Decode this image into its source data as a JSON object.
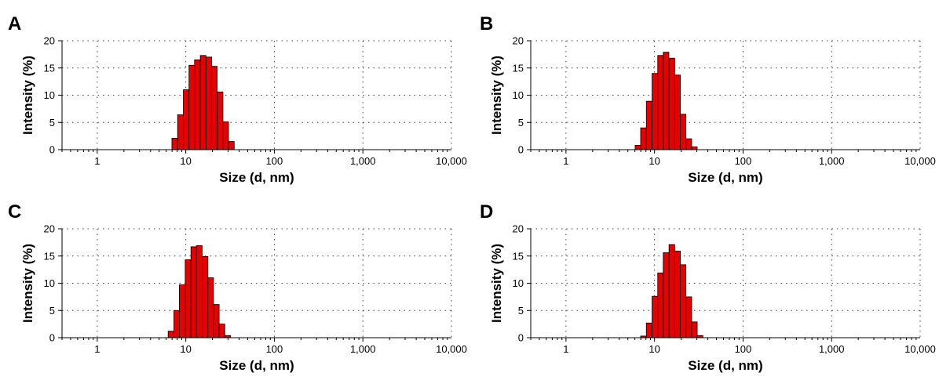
{
  "chart_data": [
    {
      "panel": "A",
      "type": "bar",
      "xlabel": "Size (d, nm)",
      "ylabel": "Intensity (%)",
      "xscale": "log",
      "xlim": [
        0.4,
        10000
      ],
      "ylim": [
        0,
        20
      ],
      "xticks": [
        "1",
        "10",
        "100",
        "1,000",
        "10,000"
      ],
      "yticks": [
        "0",
        "5",
        "10",
        "15",
        "20"
      ],
      "grid": true,
      "bar_color": "#e60000",
      "x": [
        7.5,
        8.7,
        10.1,
        11.7,
        13.5,
        15.7,
        18.2,
        21.0,
        24.4,
        28.2,
        32.7
      ],
      "values": [
        2.1,
        6.4,
        11.0,
        15.5,
        16.5,
        17.3,
        17.0,
        15.3,
        10.6,
        5.1,
        1.5
      ]
    },
    {
      "panel": "B",
      "type": "bar",
      "xlabel": "Size (d, nm)",
      "ylabel": "Intensity (%)",
      "xscale": "log",
      "xlim": [
        0.4,
        10000
      ],
      "ylim": [
        0,
        20
      ],
      "xticks": [
        "1",
        "10",
        "100",
        "1,000",
        "10,000"
      ],
      "yticks": [
        "0",
        "5",
        "10",
        "15",
        "20"
      ],
      "grid": true,
      "bar_color": "#e60000",
      "x": [
        6.5,
        7.5,
        8.7,
        10.1,
        11.7,
        13.5,
        15.7,
        18.2,
        21.0,
        24.4,
        28.2
      ],
      "values": [
        0.8,
        4.0,
        8.9,
        14.0,
        17.3,
        17.9,
        16.8,
        13.7,
        6.5,
        2.0,
        0.5
      ]
    },
    {
      "panel": "C",
      "type": "bar",
      "xlabel": "Size (d, nm)",
      "ylabel": "Intensity (%)",
      "xscale": "log",
      "xlim": [
        0.4,
        10000
      ],
      "ylim": [
        0,
        20
      ],
      "xticks": [
        "1",
        "10",
        "100",
        "1,000",
        "10,000"
      ],
      "yticks": [
        "0",
        "5",
        "10",
        "15",
        "20"
      ],
      "grid": true,
      "bar_color": "#e60000",
      "x": [
        6.8,
        7.9,
        9.1,
        10.6,
        12.3,
        14.2,
        16.5,
        19.1,
        22.1,
        25.6,
        29.7
      ],
      "values": [
        1.2,
        5.0,
        9.7,
        14.3,
        16.7,
        16.9,
        14.9,
        11.0,
        6.1,
        2.5,
        0.4
      ]
    },
    {
      "panel": "D",
      "type": "bar",
      "xlabel": "Size (d, nm)",
      "ylabel": "Intensity (%)",
      "xscale": "log",
      "xlim": [
        0.4,
        10000
      ],
      "ylim": [
        0,
        20
      ],
      "xticks": [
        "1",
        "10",
        "100",
        "1,000",
        "10,000"
      ],
      "yticks": [
        "0",
        "5",
        "10",
        "15",
        "20"
      ],
      "grid": true,
      "bar_color": "#e60000",
      "x": [
        7.5,
        8.7,
        10.1,
        11.7,
        13.5,
        15.7,
        18.2,
        21.0,
        24.4,
        28.2,
        32.7
      ],
      "values": [
        0.3,
        2.7,
        7.6,
        11.9,
        15.6,
        17.1,
        15.9,
        13.4,
        7.5,
        2.9,
        0.4
      ]
    }
  ]
}
